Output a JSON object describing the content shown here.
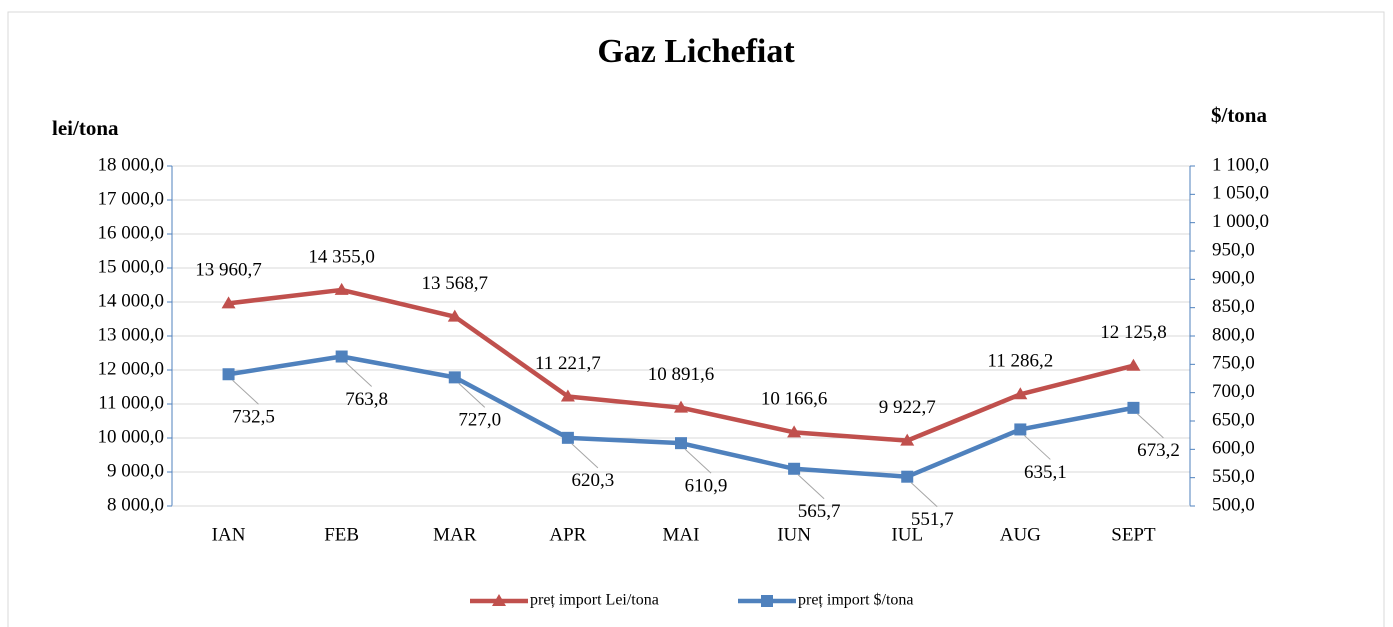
{
  "chart_data": {
    "type": "line",
    "title": "Gaz Lichefiat",
    "ylabel": "lei/tona",
    "y2label": "$/tona",
    "categories": [
      "IAN",
      "FEB",
      "MAR",
      "APR",
      "MAI",
      "IUN",
      "IUL",
      "AUG",
      "SEPT"
    ],
    "series": [
      {
        "name": "preț import Lei/tona",
        "color": "#c0504d",
        "marker": "triangle",
        "axis": "y",
        "values": [
          13960.7,
          14355.0,
          13568.7,
          11221.7,
          10891.6,
          10166.6,
          9922.7,
          11286.2,
          12125.8
        ],
        "value_labels": [
          "13 960,7",
          "14 355,0",
          "13 568,7",
          "11 221,7",
          "10 891,6",
          "10 166,6",
          "9 922,7",
          "11 286,2",
          "12 125,8"
        ]
      },
      {
        "name": "preț import $/tona",
        "color": "#4f81bd",
        "marker": "square",
        "axis": "y2",
        "values": [
          732.5,
          763.8,
          727.0,
          620.3,
          610.9,
          565.7,
          551.7,
          635.1,
          673.2
        ],
        "value_labels": [
          "732,5",
          "763,8",
          "727,0",
          "620,3",
          "610,9",
          "565,7",
          "551,7",
          "635,1",
          "673,2"
        ]
      }
    ],
    "ylim": [
      8000,
      18000
    ],
    "yticks": [
      {
        "value": 8000,
        "label": "8 000,0"
      },
      {
        "value": 9000,
        "label": "9 000,0"
      },
      {
        "value": 10000,
        "label": "10 000,0"
      },
      {
        "value": 11000,
        "label": "11 000,0"
      },
      {
        "value": 12000,
        "label": "12 000,0"
      },
      {
        "value": 13000,
        "label": "13 000,0"
      },
      {
        "value": 14000,
        "label": "14 000,0"
      },
      {
        "value": 15000,
        "label": "15 000,0"
      },
      {
        "value": 16000,
        "label": "16 000,0"
      },
      {
        "value": 17000,
        "label": "17 000,0"
      },
      {
        "value": 18000,
        "label": "18 000,0"
      }
    ],
    "y2lim": [
      500,
      1100
    ],
    "y2ticks": [
      {
        "value": 500,
        "label": "500,0"
      },
      {
        "value": 550,
        "label": "550,0"
      },
      {
        "value": 600,
        "label": "600,0"
      },
      {
        "value": 650,
        "label": "650,0"
      },
      {
        "value": 700,
        "label": "700,0"
      },
      {
        "value": 750,
        "label": "750,0"
      },
      {
        "value": 800,
        "label": "800,0"
      },
      {
        "value": 850,
        "label": "850,0"
      },
      {
        "value": 900,
        "label": "900,0"
      },
      {
        "value": 950,
        "label": "950,0"
      },
      {
        "value": 1000,
        "label": "1 000,0"
      },
      {
        "value": 1050,
        "label": "1 050,0"
      },
      {
        "value": 1100,
        "label": "1 100,0"
      }
    ],
    "grid": true,
    "legend": "bottom"
  }
}
